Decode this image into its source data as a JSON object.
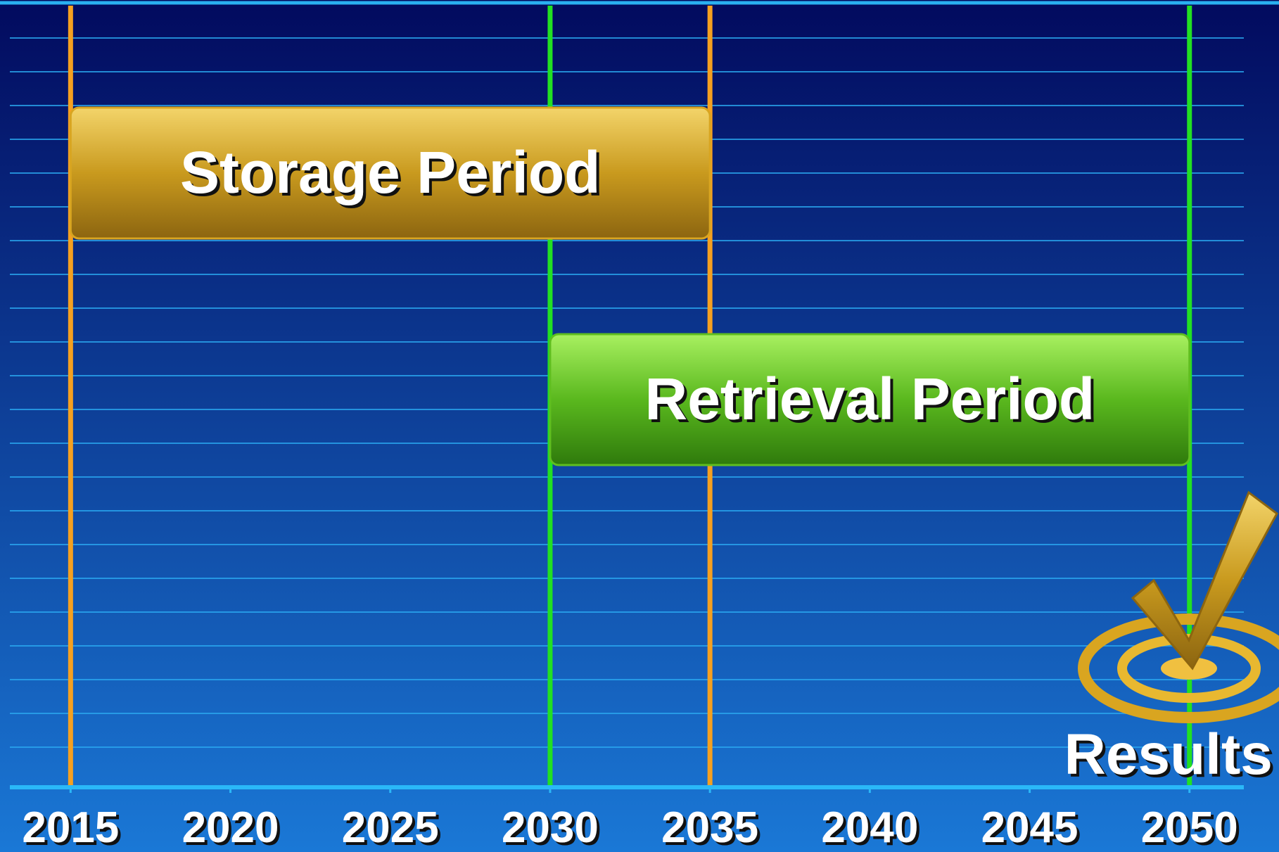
{
  "chart_data": {
    "type": "gantt",
    "xlim": [
      2013.1,
      2051.7
    ],
    "xticks": [
      2015,
      2020,
      2025,
      2030,
      2035,
      2040,
      2045,
      2050
    ],
    "series": [
      {
        "name": "Storage Period",
        "color": "#d9a520",
        "line_color": "#f5a020",
        "start": 2015,
        "end": 2035
      },
      {
        "name": "Retrieval Period",
        "color": "#5fbf1f",
        "line_color": "#22e022",
        "start": 2030,
        "end": 2050
      }
    ],
    "annotation": {
      "text": "Results",
      "x": 2050
    }
  }
}
